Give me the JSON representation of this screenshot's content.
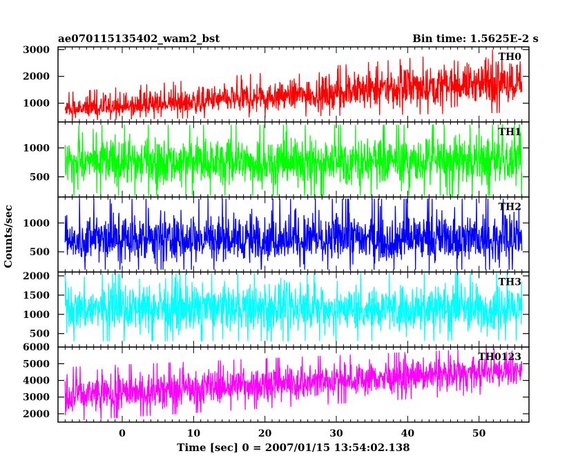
{
  "header": {
    "left_title": "ae070115135402_wam2_bst",
    "right_title": "Bin time: 1.5625E-2 s"
  },
  "chart_data": {
    "type": "line",
    "xlabel": "Time [sec] 0 = 2007/01/15 13:54:02.138",
    "ylabel": "Counts/sec",
    "xlim": [
      -9,
      57
    ],
    "x_range": [
      -8,
      56
    ],
    "x_ticks": [
      0,
      10,
      20,
      30,
      40,
      50
    ],
    "bin_time_s": 0.015625,
    "grid": false,
    "panels": [
      {
        "name": "TH0",
        "color": "#ff0000",
        "ylim": [
          300,
          3100
        ],
        "y_ticks": [
          1000,
          2000,
          3000
        ],
        "trend_start": 700,
        "trend_end": 1850,
        "max_start": 1400,
        "max_end": 3100,
        "min_start": 350,
        "min_end": 650
      },
      {
        "name": "TH1",
        "color": "#00ff00",
        "ylim": [
          150,
          1450
        ],
        "y_ticks": [
          500,
          1000
        ],
        "trend_start": 750,
        "trend_end": 760,
        "max_start": 1400,
        "max_end": 1400,
        "min_start": 170,
        "min_end": 170
      },
      {
        "name": "TH2",
        "color": "#0000ff",
        "ylim": [
          150,
          1450
        ],
        "y_ticks": [
          500,
          1000
        ],
        "trend_start": 700,
        "trend_end": 710,
        "max_start": 1420,
        "max_end": 1420,
        "min_start": 190,
        "min_end": 190
      },
      {
        "name": "TH3",
        "color": "#00ffff",
        "ylim": [
          150,
          2100
        ],
        "y_ticks": [
          500,
          1000,
          1500,
          2000
        ],
        "trend_start": 1150,
        "trend_end": 1160,
        "max_start": 2050,
        "max_end": 2100,
        "min_start": 300,
        "min_end": 320
      },
      {
        "name": "TH0123",
        "color": "#ff00ff",
        "ylim": [
          1500,
          6000
        ],
        "y_ticks": [
          2000,
          3000,
          4000,
          5000,
          6000
        ],
        "trend_start": 3100,
        "trend_end": 4600,
        "max_start": 4800,
        "max_end": 6000,
        "min_start": 1550,
        "min_end": 3300
      }
    ]
  }
}
